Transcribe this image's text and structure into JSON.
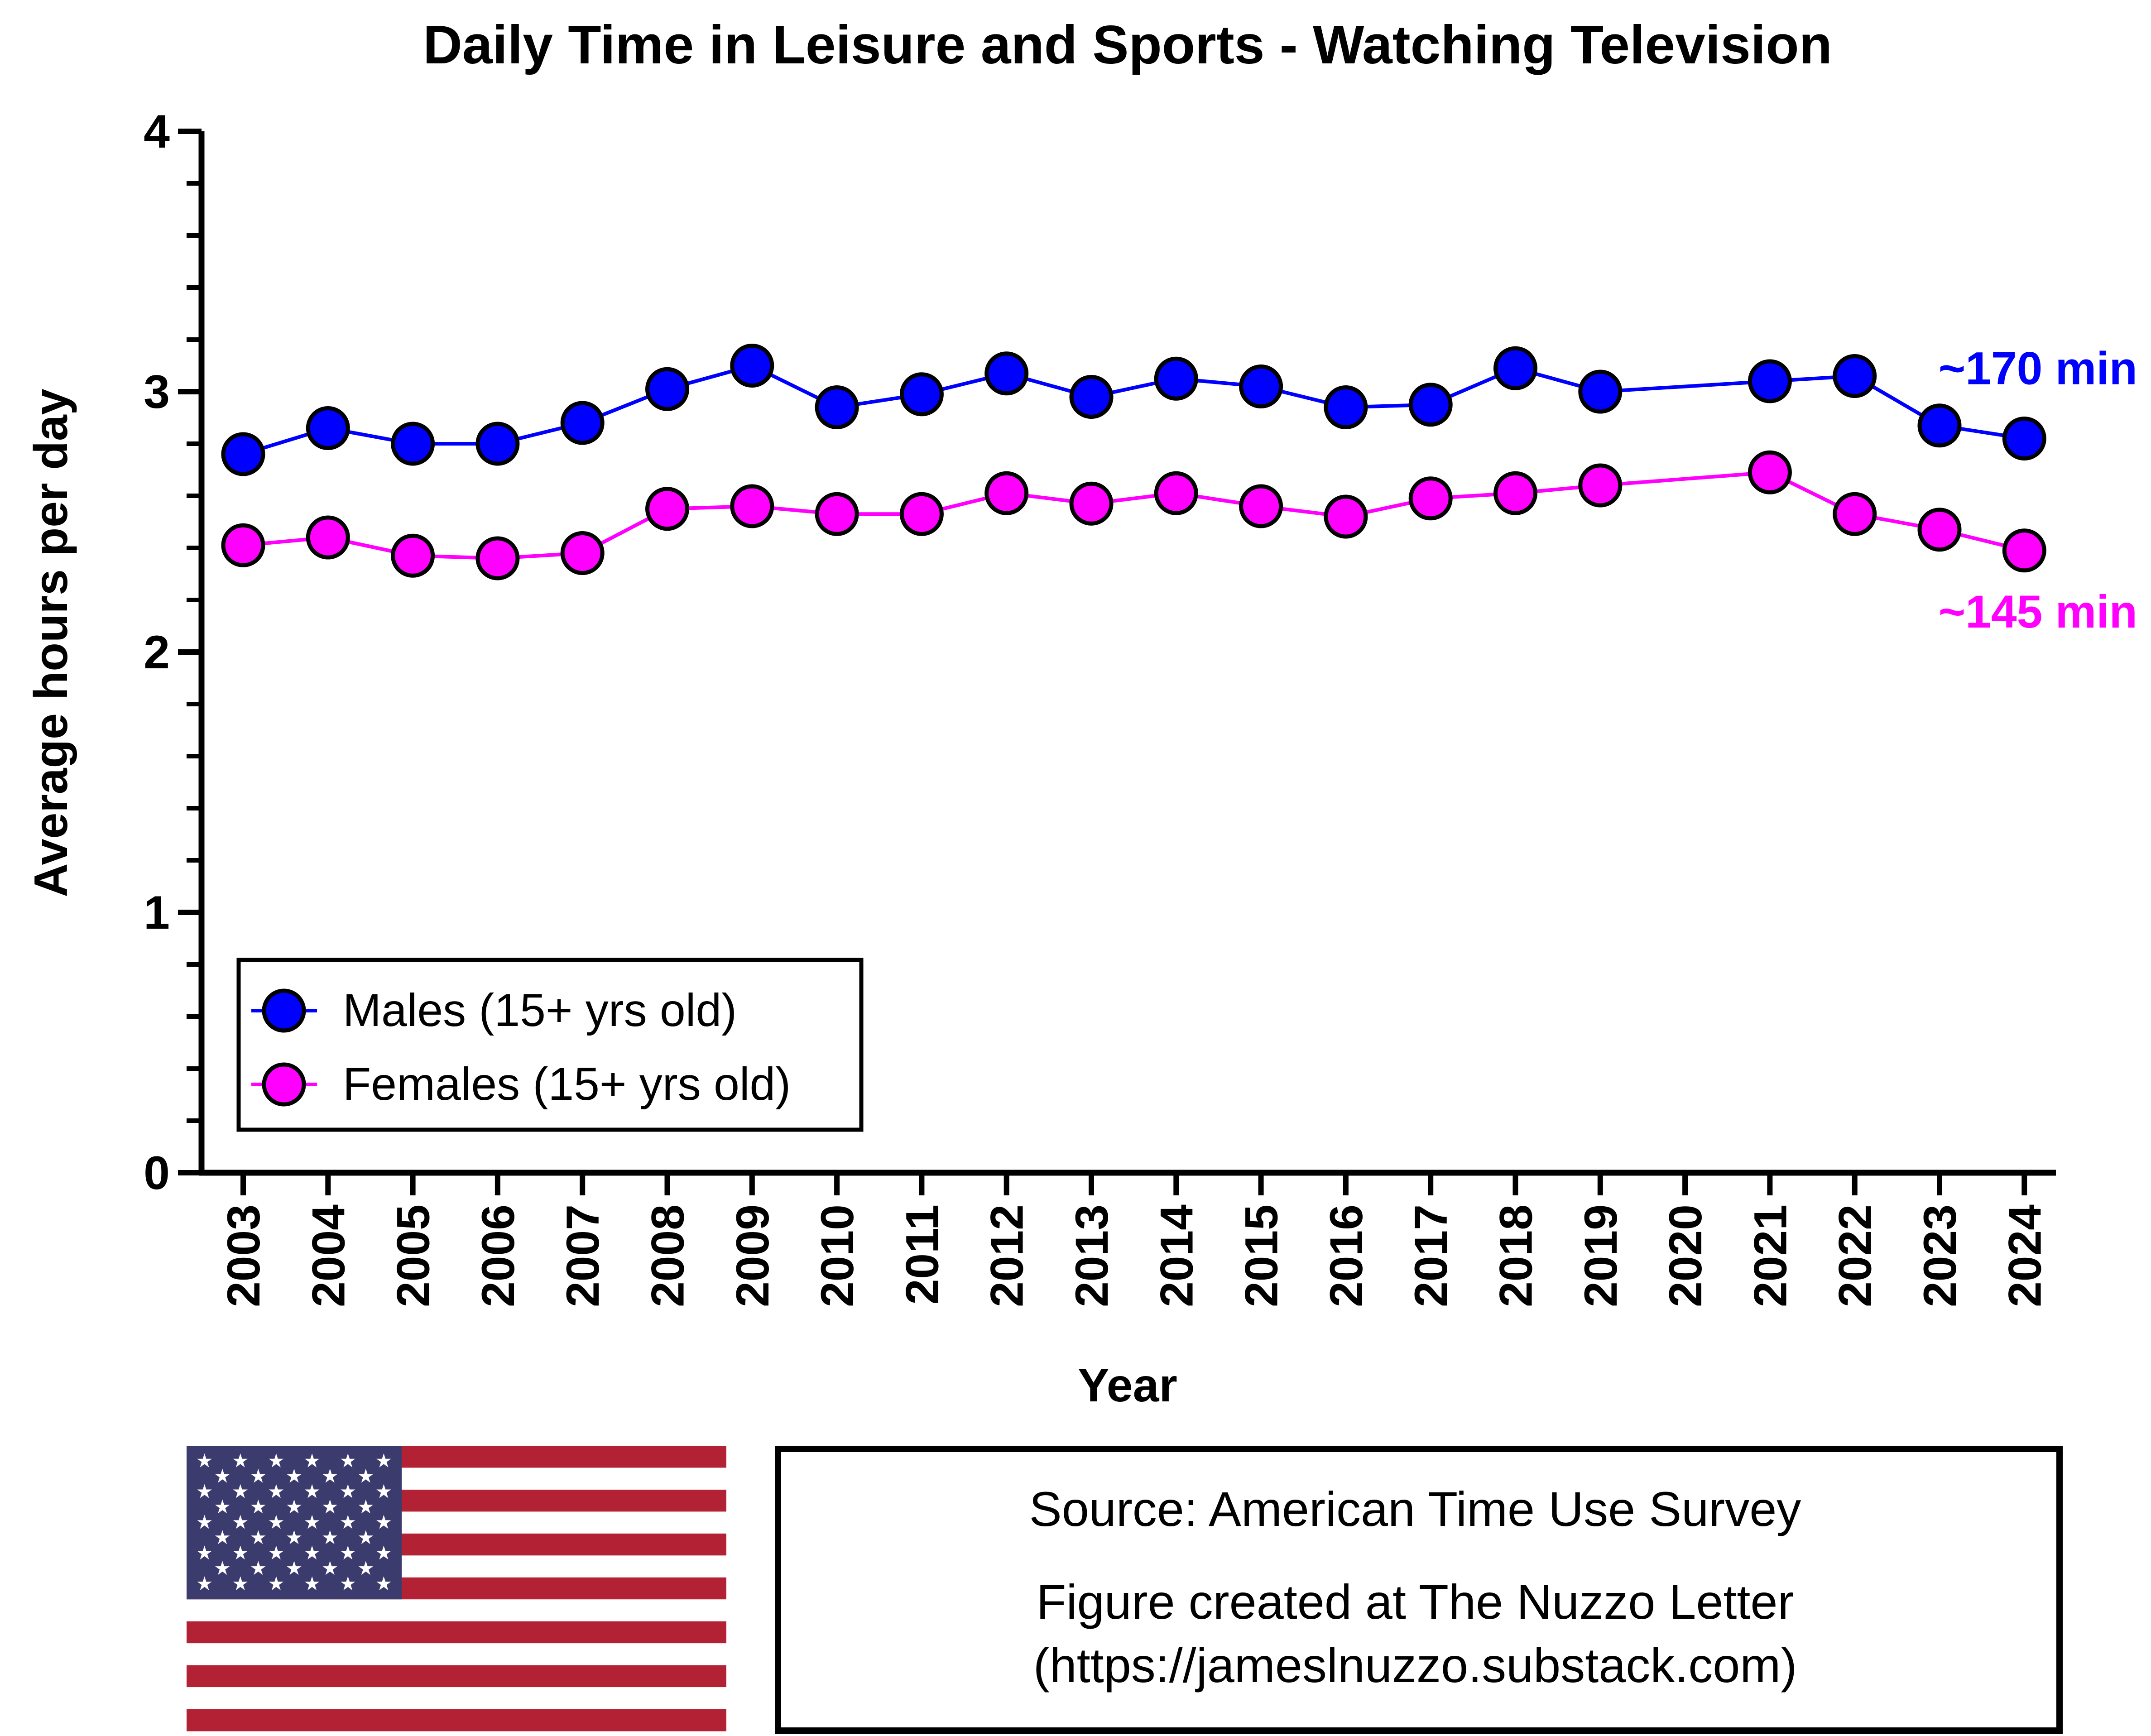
{
  "chart_data": {
    "type": "line",
    "title": "Daily Time in Leisure and Sports - Watching Television",
    "xlabel": "Year",
    "ylabel": "Average hours per day",
    "ylim": [
      0,
      4
    ],
    "yticks": [
      "0",
      "1",
      "2",
      "3",
      "4"
    ],
    "categories": [
      "2003",
      "2004",
      "2005",
      "2006",
      "2007",
      "2008",
      "2009",
      "2010",
      "2011",
      "2012",
      "2013",
      "2014",
      "2015",
      "2016",
      "2017",
      "2018",
      "2019",
      "2020",
      "2021",
      "2022",
      "2023",
      "2024"
    ],
    "series": [
      {
        "name": "Males (15+ yrs old)",
        "color": "#0000ff",
        "values": [
          2.76,
          2.86,
          2.8,
          2.8,
          2.88,
          3.01,
          3.1,
          2.94,
          2.99,
          3.07,
          2.98,
          3.05,
          3.02,
          2.94,
          2.95,
          3.09,
          3.0,
          null,
          3.04,
          3.06,
          2.87,
          2.82
        ]
      },
      {
        "name": "Females (15+ yrs old)",
        "color": "#ff00ff",
        "values": [
          2.41,
          2.44,
          2.37,
          2.36,
          2.38,
          2.55,
          2.56,
          2.53,
          2.53,
          2.61,
          2.57,
          2.61,
          2.56,
          2.52,
          2.59,
          2.61,
          2.64,
          null,
          2.69,
          2.53,
          2.47,
          2.39
        ]
      }
    ],
    "annotations": [
      {
        "text": "~170 min",
        "series": 0,
        "color": "#0000ff"
      },
      {
        "text": "~145 min",
        "series": 1,
        "color": "#ff00ff"
      }
    ],
    "legend_position": "bottom-left",
    "grid": false
  },
  "footer": {
    "source_line": "Source: American Time Use Survey",
    "credit_line": "Figure created at The Nuzzo Letter",
    "url_line": "(https://jameslnuzzo.substack.com)",
    "flag_icon": "us-flag-icon"
  },
  "colors": {
    "flag_red": "#b22234",
    "flag_blue": "#3c3b6e"
  }
}
